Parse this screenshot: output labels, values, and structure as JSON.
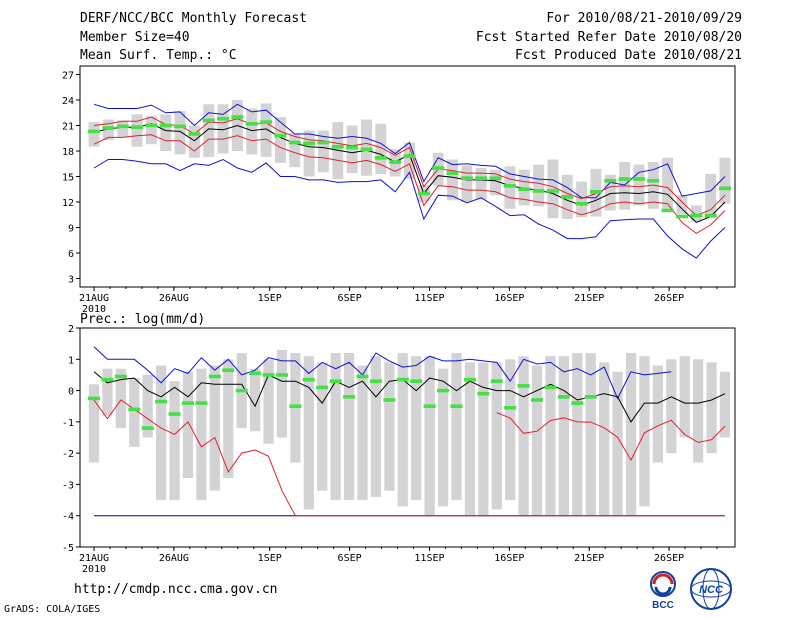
{
  "header": {
    "title": "DERF/NCC/BCC Monthly Forecast",
    "member_size": "Member Size=40",
    "variable": "Mean Surf. Temp.: °C",
    "period": "For 2010/08/21-2010/09/29",
    "started": "Fcst Started Refer Date 2010/08/20",
    "produced": "Fcst Produced Date 2010/08/21"
  },
  "footer": {
    "url": "http://cmdp.ncc.cma.gov.cn",
    "credit": "GrADS: COLA/IGES",
    "logo_left_text": "BCC",
    "logo_right_text": "NCC"
  },
  "colors": {
    "box": "#d3d3d5",
    "mean": "#000000",
    "spread": "#e0202c",
    "range": "#1010d0",
    "marker": "#44e044",
    "zero_line": "#0000a0"
  },
  "chart_data": [
    {
      "type": "box-line",
      "title": "Mean Surf. Temp.: °C",
      "ylim": [
        2,
        28
      ],
      "yticks": [
        3,
        6,
        9,
        12,
        15,
        18,
        21,
        24,
        27
      ],
      "xlim": [
        0,
        39.5
      ],
      "xticks": [
        {
          "day": 0,
          "label": "21AUG"
        },
        {
          "day": 5,
          "label": "26AUG"
        },
        {
          "day": 11,
          "label": "1SEP"
        },
        {
          "day": 16,
          "label": "6SEP"
        },
        {
          "day": 21,
          "label": "11SEP"
        },
        {
          "day": 26,
          "label": "16SEP"
        },
        {
          "day": 31,
          "label": "21SEP"
        },
        {
          "day": 36,
          "label": "26SEP"
        }
      ],
      "year_label": "2010",
      "mean": [
        20.2,
        20.6,
        20.8,
        20.8,
        21.2,
        20.4,
        20.3,
        19.2,
        20.6,
        20.5,
        21.0,
        20.4,
        20.6,
        19.6,
        18.9,
        18.5,
        18.4,
        18.1,
        17.8,
        18.1,
        17.6,
        16.7,
        17.6,
        13.0,
        15.1,
        14.9,
        14.6,
        14.6,
        14.5,
        13.9,
        13.6,
        13.4,
        13.0,
        12.2,
        11.6,
        12.2,
        13.0,
        13.1,
        13.0,
        13.2,
        12.9,
        11.2,
        9.6,
        10.3,
        12.0
      ],
      "spread_high": [
        21.0,
        21.2,
        21.5,
        21.5,
        22.0,
        21.1,
        21.0,
        20.0,
        21.4,
        21.3,
        21.8,
        21.1,
        21.3,
        20.3,
        19.7,
        19.3,
        19.2,
        18.9,
        18.6,
        18.9,
        18.4,
        17.5,
        18.4,
        13.8,
        15.9,
        15.7,
        15.4,
        15.4,
        15.3,
        14.7,
        14.4,
        14.2,
        13.8,
        13.0,
        12.4,
        13.0,
        13.8,
        13.9,
        13.8,
        14.0,
        13.7,
        12.0,
        10.4,
        11.1,
        12.8
      ],
      "spread_low": [
        18.8,
        19.6,
        19.6,
        19.8,
        19.9,
        19.2,
        19.2,
        18.0,
        19.4,
        19.4,
        19.8,
        19.2,
        19.4,
        18.4,
        17.8,
        17.3,
        17.2,
        16.9,
        16.6,
        16.9,
        16.4,
        15.6,
        16.5,
        11.6,
        13.9,
        13.8,
        13.4,
        13.4,
        13.2,
        12.5,
        12.3,
        12.0,
        11.8,
        11.1,
        10.5,
        11.0,
        11.8,
        12.0,
        11.8,
        12.0,
        11.8,
        9.6,
        8.3,
        9.3,
        11.0
      ],
      "max": [
        23.5,
        23.0,
        23.0,
        23.0,
        23.4,
        22.5,
        22.6,
        21.0,
        22.5,
        22.3,
        23.5,
        22.6,
        22.8,
        21.4,
        20.0,
        20.0,
        19.7,
        19.5,
        19.7,
        19.5,
        18.9,
        17.7,
        19.0,
        14.4,
        17.2,
        16.4,
        16.5,
        16.3,
        16.2,
        15.3,
        15.0,
        14.7,
        14.6,
        13.7,
        12.5,
        12.5,
        14.3,
        14.0,
        15.5,
        15.8,
        16.5,
        12.7,
        13.0,
        13.3,
        15.0
      ],
      "min": [
        16.0,
        17.0,
        17.0,
        16.8,
        16.5,
        16.5,
        15.7,
        16.5,
        16.3,
        17.0,
        16.0,
        15.5,
        16.6,
        15.0,
        15.0,
        14.6,
        14.6,
        14.3,
        14.4,
        14.4,
        14.6,
        13.2,
        15.5,
        10.0,
        12.8,
        12.7,
        11.9,
        12.5,
        11.5,
        10.4,
        10.5,
        9.4,
        8.7,
        7.7,
        7.7,
        7.9,
        9.8,
        9.9,
        10.0,
        10.0,
        8.0,
        6.5,
        5.4,
        7.4,
        9.0
      ],
      "box_high": [
        21.4,
        21.7,
        21.6,
        22.3,
        22.1,
        22.3,
        22.7,
        21.0,
        23.5,
        23.5,
        24.0,
        23.0,
        23.6,
        22.0,
        20.1,
        20.4,
        20.4,
        21.4,
        21.0,
        21.7,
        21.2,
        18.2,
        19.0,
        14.0,
        17.8,
        17.0,
        16.3,
        16.0,
        15.8,
        16.2,
        15.8,
        16.4,
        17.0,
        15.2,
        14.4,
        15.9,
        15.2,
        16.7,
        16.4,
        16.7,
        17.2,
        12.8,
        11.6,
        15.3,
        17.2
      ],
      "box_low": [
        18.5,
        19.3,
        19.6,
        18.5,
        18.8,
        18.0,
        17.6,
        17.2,
        17.3,
        17.7,
        18.0,
        17.6,
        17.3,
        16.6,
        16.1,
        15.0,
        15.5,
        14.7,
        15.4,
        15.1,
        15.3,
        15.0,
        14.7,
        12.0,
        13.9,
        12.2,
        12.0,
        12.3,
        12.8,
        11.2,
        11.6,
        11.5,
        10.1,
        10.0,
        10.2,
        10.3,
        11.0,
        11.1,
        11.6,
        11.2,
        11.2,
        10.6,
        9.7,
        10.1,
        11.8
      ],
      "marker": [
        20.3,
        20.7,
        20.9,
        20.8,
        21.0,
        21.0,
        20.9,
        20.0,
        21.6,
        21.8,
        22.0,
        21.2,
        21.4,
        19.8,
        19.0,
        18.9,
        19.0,
        18.5,
        18.4,
        18.2,
        17.2,
        16.7,
        17.4,
        13.0,
        16.0,
        15.4,
        14.8,
        14.8,
        14.8,
        13.9,
        13.5,
        13.3,
        13.3,
        12.6,
        11.8,
        13.2,
        14.5,
        14.7,
        14.7,
        14.5,
        11.0,
        10.3,
        10.4,
        10.4,
        13.6
      ]
    },
    {
      "type": "box-line",
      "title": "Prec.: log(mm/d)",
      "ylim": [
        -5,
        2
      ],
      "yticks": [
        -5,
        -4,
        -3,
        -2,
        -1,
        0,
        1,
        2
      ],
      "floor": -4,
      "xlim": [
        0,
        39.5
      ],
      "xticks": [
        {
          "day": 0,
          "label": "21AUG"
        },
        {
          "day": 5,
          "label": "26AUG"
        },
        {
          "day": 11,
          "label": "1SEP"
        },
        {
          "day": 16,
          "label": "6SEP"
        },
        {
          "day": 21,
          "label": "11SEP"
        },
        {
          "day": 26,
          "label": "16SEP"
        },
        {
          "day": 31,
          "label": "21SEP"
        },
        {
          "day": 36,
          "label": "26SEP"
        }
      ],
      "year_label": "2010",
      "mean": [
        0.6,
        0.25,
        0.35,
        0.4,
        0.0,
        -0.2,
        0.1,
        -0.2,
        0.25,
        0.2,
        0.2,
        0.2,
        -0.5,
        0.5,
        0.3,
        0.3,
        0.1,
        -0.4,
        0.3,
        0.1,
        0.3,
        -0.2,
        0.3,
        0.35,
        0.0,
        0.4,
        0.3,
        0.0,
        0.3,
        0.1,
        0.0,
        0.0,
        -0.2,
        0.0,
        0.2,
        0.0,
        -0.3,
        -0.2,
        -0.1,
        -0.2,
        -1.0,
        -0.4,
        -0.4,
        -0.2,
        -0.4,
        -0.4,
        -0.3,
        -0.1
      ],
      "spread_high": [],
      "spread_low": [
        -0.3,
        -0.9,
        -0.3,
        -0.6,
        -0.9,
        -1.2,
        -1.4,
        -1.0,
        -1.8,
        -1.5,
        -2.6,
        -2.0,
        -1.9,
        -2.1,
        -3.2,
        -4.0
      ],
      "max": [
        1.4,
        1.0,
        1.0,
        1.0,
        0.65,
        0.25,
        0.7,
        0.55,
        1.05,
        0.65,
        1.0,
        0.5,
        0.65,
        1.05,
        0.95,
        0.95,
        0.55,
        0.9,
        0.7,
        0.9,
        0.5,
        1.2,
        0.95,
        0.75,
        0.8,
        1.1,
        0.95,
        0.95,
        1.0,
        0.95,
        0.9,
        0.3,
        1.0,
        0.85,
        0.9,
        0.6,
        0.7,
        0.5,
        0.75,
        -0.25,
        0.6,
        0.5,
        0.55,
        0.6
      ],
      "min": [],
      "box_high": [
        0.2,
        0.7,
        0.7,
        0.4,
        0.5,
        0.8,
        0.3,
        0.6,
        0.7,
        0.8,
        1.0,
        1.2,
        0.7,
        1.0,
        1.3,
        1.2,
        1.1,
        0.9,
        1.2,
        1.2,
        0.8,
        1.1,
        0.9,
        1.2,
        1.1,
        1.1,
        0.7,
        1.2,
        0.9,
        0.9,
        0.9,
        1.0,
        1.1,
        0.8,
        1.1,
        1.1,
        1.2,
        1.2,
        0.9,
        0.6,
        1.2,
        1.1,
        0.8,
        1.0,
        1.1,
        1.0,
        0.9,
        0.6
      ],
      "box_low": [
        -2.3,
        -0.8,
        -1.2,
        -1.8,
        -1.5,
        -3.5,
        -3.5,
        -2.8,
        -3.5,
        -3.2,
        -2.8,
        -1.2,
        -1.3,
        -1.7,
        -1.5,
        -2.3,
        -3.8,
        -3.2,
        -3.5,
        -3.5,
        -3.5,
        -3.4,
        -3.2,
        -3.7,
        -3.5,
        -4.0,
        -3.7,
        -3.5,
        -4.0,
        -4.0,
        -3.8,
        -3.5,
        -4.0,
        -4.0,
        -4.0,
        -4.0,
        -4.0,
        -4.0,
        -4.0,
        -4.0,
        -4.0,
        -3.7,
        -2.3,
        -2.0,
        -1.5,
        -2.3,
        -2.0,
        -1.5
      ],
      "marker": [
        -0.25,
        0.35,
        0.45,
        -0.6,
        -1.2,
        -0.35,
        -0.75,
        -0.4,
        -0.4,
        0.45,
        0.65,
        0.0,
        0.55,
        0.5,
        0.5,
        -0.5,
        0.35,
        0.1,
        0.3,
        -0.2,
        0.45,
        0.3,
        -0.3,
        0.35,
        0.3,
        -0.5,
        0.0,
        -0.5,
        0.35,
        -0.1,
        0.3,
        -0.55,
        0.15,
        -0.3,
        0.1,
        -0.2,
        -0.4,
        -0.2
      ]
    }
  ]
}
